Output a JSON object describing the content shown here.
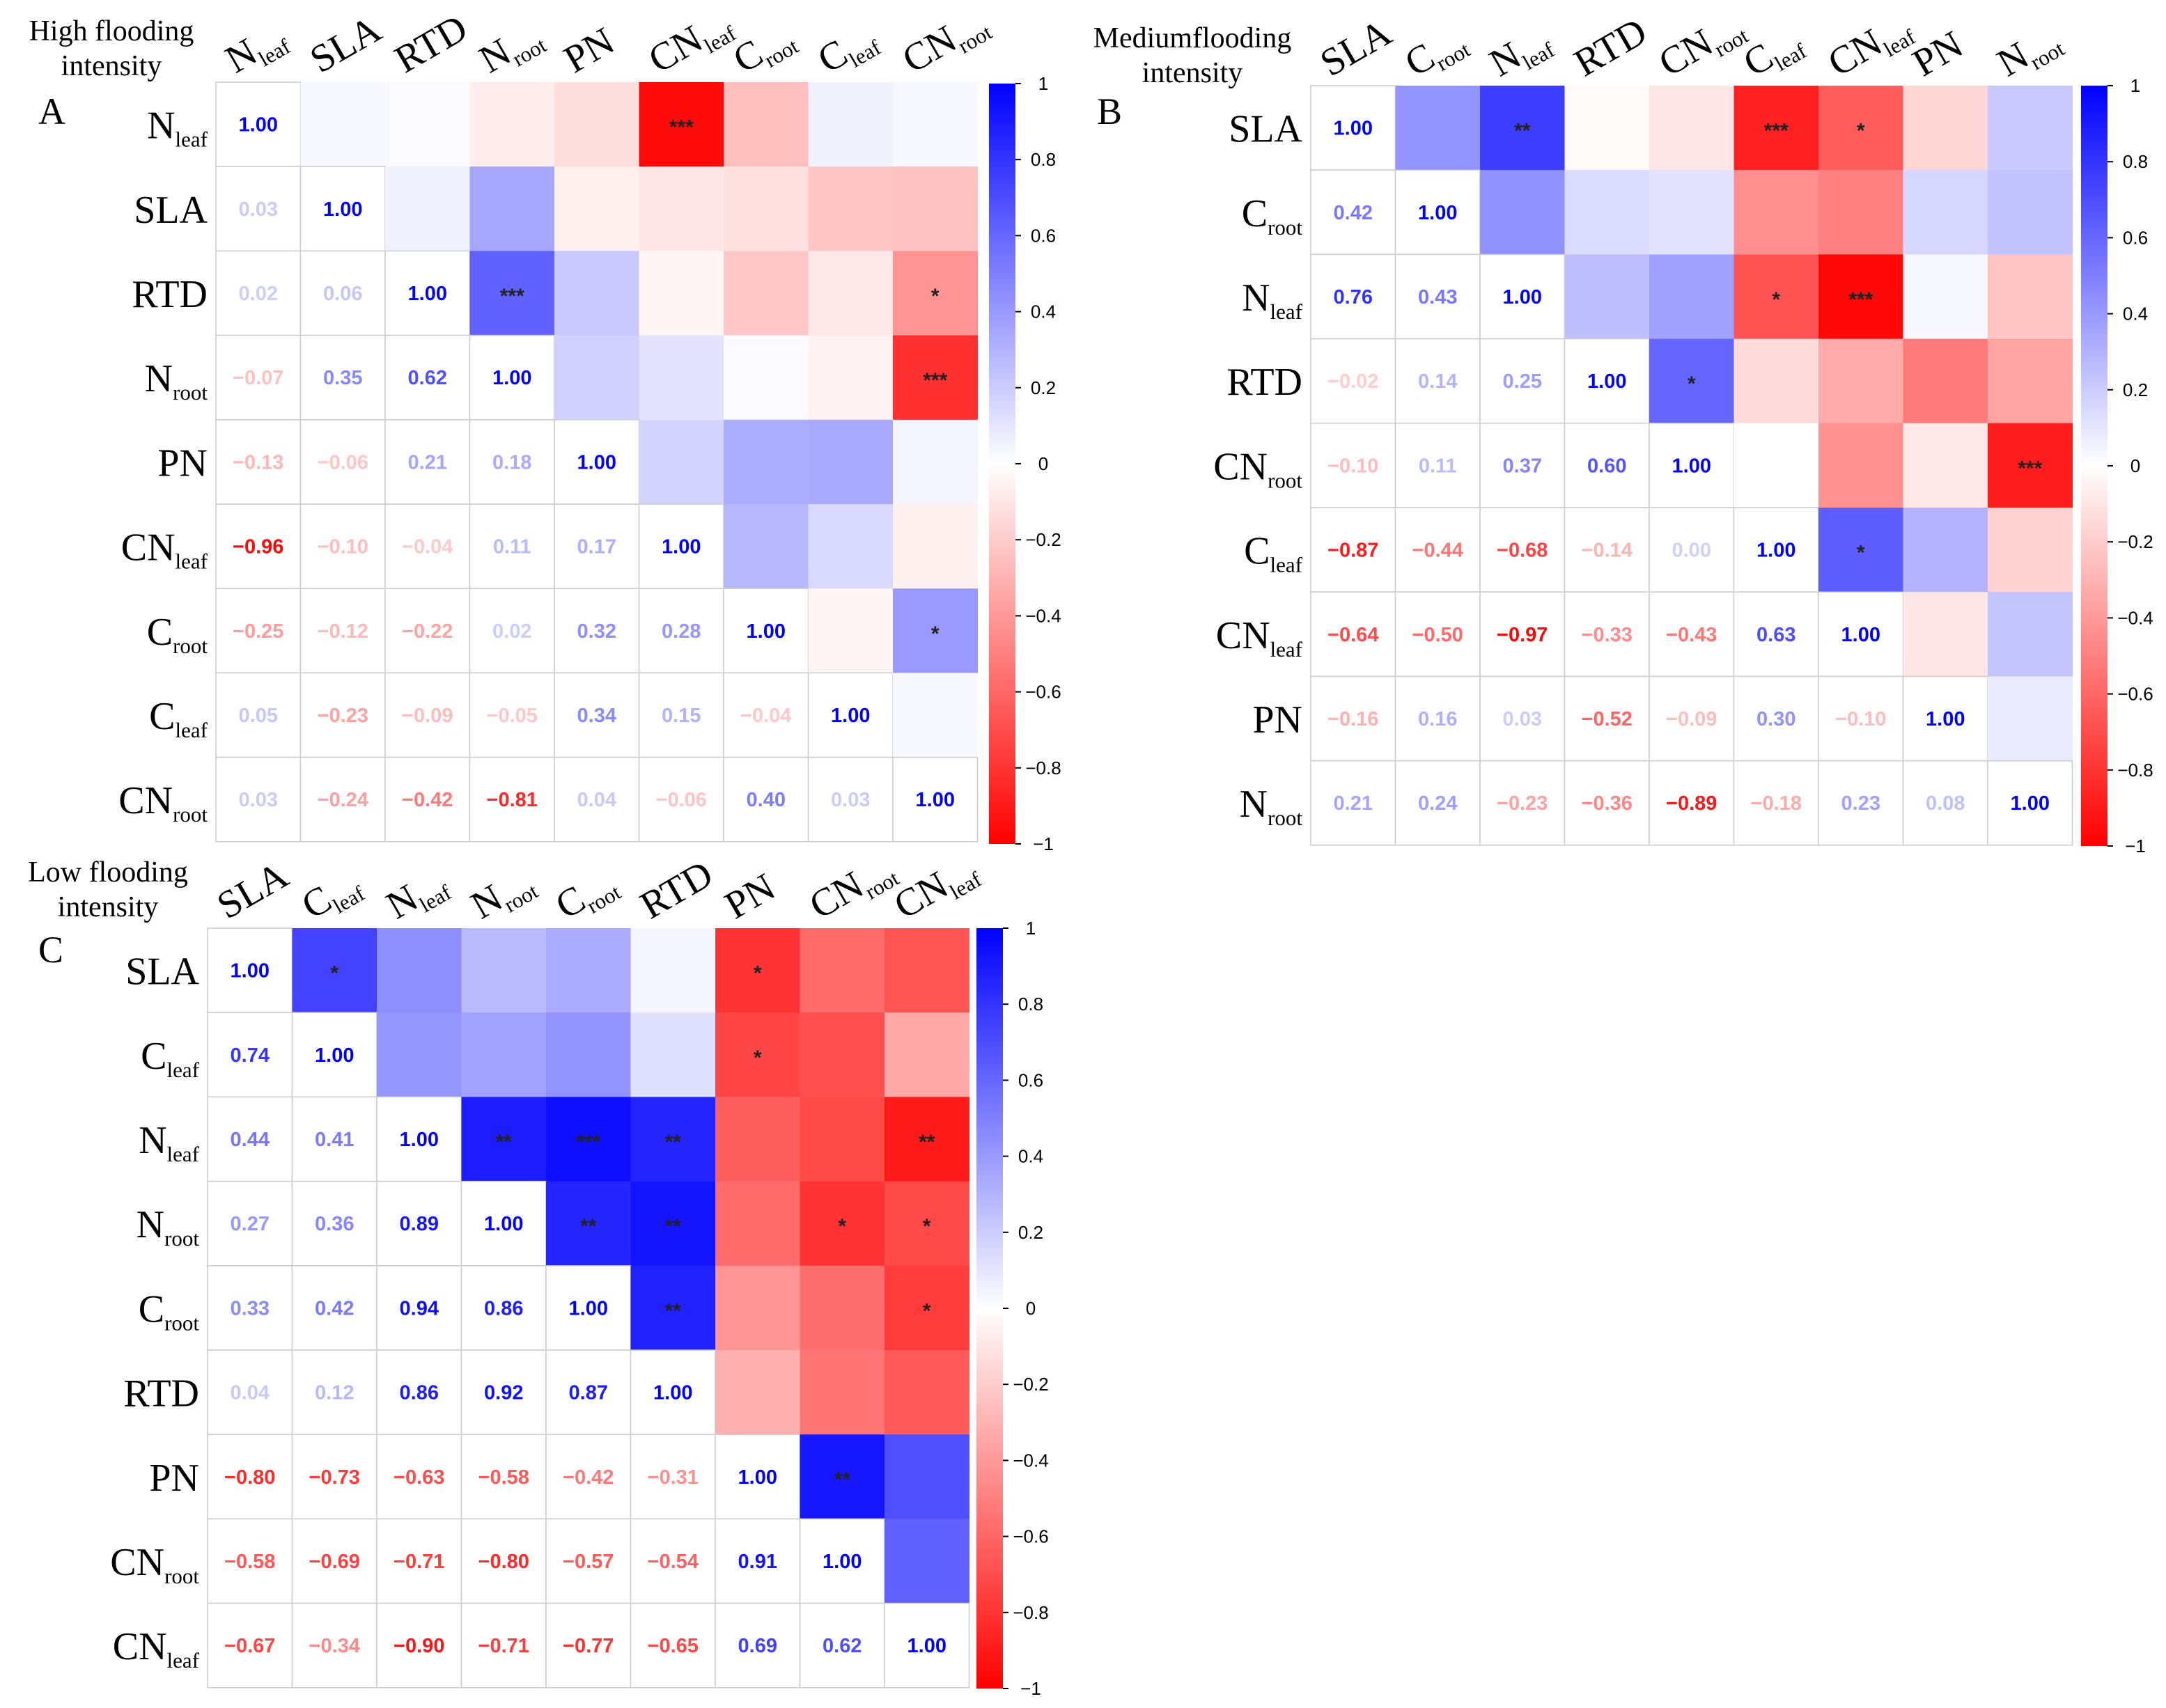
{
  "figure": {
    "colors": {
      "negative": "#ff0000",
      "neutral": "#ffffff",
      "positive": "#0000ff",
      "grid": "#cccccc"
    }
  },
  "chart_data": [
    {
      "type": "heatmap",
      "panel": "A",
      "title": "High flooding intensity",
      "title_lines": [
        "High flooding",
        "intensity"
      ],
      "labels": [
        {
          "base": "N",
          "sub": "leaf"
        },
        {
          "base": "SLA",
          "sub": ""
        },
        {
          "base": "RTD",
          "sub": ""
        },
        {
          "base": "N",
          "sub": "root"
        },
        {
          "base": "PN",
          "sub": ""
        },
        {
          "base": "CN",
          "sub": "leaf"
        },
        {
          "base": "C",
          "sub": "root"
        },
        {
          "base": "C",
          "sub": "leaf"
        },
        {
          "base": "CN",
          "sub": "root"
        }
      ],
      "lower": [
        [],
        [
          0.03
        ],
        [
          0.02,
          0.06
        ],
        [
          -0.07,
          0.35,
          0.62
        ],
        [
          -0.13,
          -0.06,
          0.21,
          0.18
        ],
        [
          -0.96,
          -0.1,
          -0.04,
          0.11,
          0.17
        ],
        [
          -0.25,
          -0.12,
          -0.22,
          0.02,
          0.32,
          0.28
        ],
        [
          0.05,
          -0.23,
          -0.09,
          -0.05,
          0.34,
          0.15,
          -0.04
        ],
        [
          0.03,
          -0.24,
          -0.42,
          -0.81,
          0.04,
          -0.06,
          0.4,
          0.03
        ]
      ],
      "significance": [
        {
          "row": 0,
          "col": 5,
          "mark": "***"
        },
        {
          "row": 2,
          "col": 3,
          "mark": "***"
        },
        {
          "row": 2,
          "col": 8,
          "mark": "*"
        },
        {
          "row": 3,
          "col": 8,
          "mark": "***"
        },
        {
          "row": 6,
          "col": 8,
          "mark": "*"
        }
      ],
      "colorbar": {
        "range": [
          -1,
          1
        ],
        "ticks": [
          "1",
          "0.8",
          "0.6",
          "0.4",
          "0.2",
          "0",
          "−0.2",
          "−0.4",
          "−0.6",
          "−0.8",
          "−1"
        ]
      }
    },
    {
      "type": "heatmap",
      "panel": "B",
      "title": "Mediumflooding intensity",
      "title_lines": [
        "Mediumflooding",
        "intensity"
      ],
      "labels": [
        {
          "base": "SLA",
          "sub": ""
        },
        {
          "base": "C",
          "sub": "root"
        },
        {
          "base": "N",
          "sub": "leaf"
        },
        {
          "base": "RTD",
          "sub": ""
        },
        {
          "base": "CN",
          "sub": "root"
        },
        {
          "base": "C",
          "sub": "leaf"
        },
        {
          "base": "CN",
          "sub": "leaf"
        },
        {
          "base": "PN",
          "sub": ""
        },
        {
          "base": "N",
          "sub": "root"
        }
      ],
      "lower": [
        [],
        [
          0.42
        ],
        [
          0.76,
          0.43
        ],
        [
          -0.02,
          0.14,
          0.25
        ],
        [
          -0.1,
          0.11,
          0.37,
          0.6
        ],
        [
          -0.87,
          -0.44,
          -0.68,
          -0.14,
          0.0
        ],
        [
          -0.64,
          -0.5,
          -0.97,
          -0.33,
          -0.43,
          0.63
        ],
        [
          -0.16,
          0.16,
          0.03,
          -0.52,
          -0.09,
          0.3,
          -0.1
        ],
        [
          0.21,
          0.24,
          -0.23,
          -0.36,
          -0.89,
          -0.18,
          0.23,
          0.08
        ]
      ],
      "significance": [
        {
          "row": 0,
          "col": 2,
          "mark": "**"
        },
        {
          "row": 0,
          "col": 5,
          "mark": "***"
        },
        {
          "row": 0,
          "col": 6,
          "mark": "*"
        },
        {
          "row": 2,
          "col": 5,
          "mark": "*"
        },
        {
          "row": 2,
          "col": 6,
          "mark": "***"
        },
        {
          "row": 3,
          "col": 4,
          "mark": "*"
        },
        {
          "row": 4,
          "col": 8,
          "mark": "***"
        },
        {
          "row": 5,
          "col": 6,
          "mark": "*"
        }
      ],
      "colorbar": {
        "range": [
          -1,
          1
        ],
        "ticks": [
          "1",
          "0.8",
          "0.6",
          "0.4",
          "0.2",
          "0",
          "−0.2",
          "−0.4",
          "−0.6",
          "−0.8",
          "−1"
        ]
      }
    },
    {
      "type": "heatmap",
      "panel": "C",
      "title": "Low flooding intensity",
      "title_lines": [
        "Low flooding",
        "intensity"
      ],
      "labels": [
        {
          "base": "SLA",
          "sub": ""
        },
        {
          "base": "C",
          "sub": "leaf"
        },
        {
          "base": "N",
          "sub": "leaf"
        },
        {
          "base": "N",
          "sub": "root"
        },
        {
          "base": "C",
          "sub": "root"
        },
        {
          "base": "RTD",
          "sub": ""
        },
        {
          "base": "PN",
          "sub": ""
        },
        {
          "base": "CN",
          "sub": "root"
        },
        {
          "base": "CN",
          "sub": "leaf"
        }
      ],
      "lower": [
        [],
        [
          0.74
        ],
        [
          0.44,
          0.41
        ],
        [
          0.27,
          0.36,
          0.89
        ],
        [
          0.33,
          0.42,
          0.94,
          0.86
        ],
        [
          0.04,
          0.12,
          0.86,
          0.92,
          0.87
        ],
        [
          -0.8,
          -0.73,
          -0.63,
          -0.58,
          -0.42,
          -0.31
        ],
        [
          -0.58,
          -0.69,
          -0.71,
          -0.8,
          -0.57,
          -0.54,
          0.91
        ],
        [
          -0.67,
          -0.34,
          -0.9,
          -0.71,
          -0.77,
          -0.65,
          0.69,
          0.62
        ]
      ],
      "significance": [
        {
          "row": 0,
          "col": 1,
          "mark": "*"
        },
        {
          "row": 0,
          "col": 6,
          "mark": "*"
        },
        {
          "row": 1,
          "col": 6,
          "mark": "*"
        },
        {
          "row": 2,
          "col": 3,
          "mark": "**"
        },
        {
          "row": 2,
          "col": 4,
          "mark": "***"
        },
        {
          "row": 2,
          "col": 5,
          "mark": "**"
        },
        {
          "row": 2,
          "col": 8,
          "mark": "**"
        },
        {
          "row": 3,
          "col": 4,
          "mark": "**"
        },
        {
          "row": 3,
          "col": 5,
          "mark": "**"
        },
        {
          "row": 3,
          "col": 7,
          "mark": "*"
        },
        {
          "row": 3,
          "col": 8,
          "mark": "*"
        },
        {
          "row": 4,
          "col": 5,
          "mark": "**"
        },
        {
          "row": 4,
          "col": 8,
          "mark": "*"
        },
        {
          "row": 6,
          "col": 7,
          "mark": "**"
        }
      ],
      "colorbar": {
        "range": [
          -1,
          1
        ],
        "ticks": [
          "1",
          "0.8",
          "0.6",
          "0.4",
          "0.2",
          "0",
          "−0.2",
          "−0.4",
          "−0.6",
          "−0.8",
          "−1"
        ]
      }
    }
  ]
}
